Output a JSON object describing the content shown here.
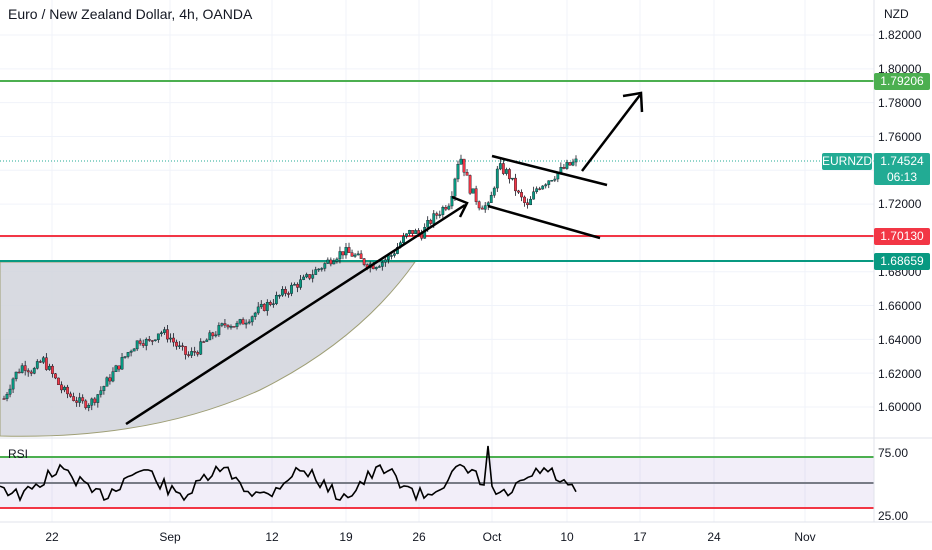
{
  "header": {
    "title": "Euro / New Zealand Dollar, 4h, OANDA"
  },
  "price_axis": {
    "unit": "NZD",
    "ticks": [
      "1.82000",
      "1.80000",
      "1.78000",
      "1.76000",
      "1.72000",
      "1.68000",
      "1.66000",
      "1.64000",
      "1.62000",
      "1.60000"
    ]
  },
  "time_axis": {
    "ticks": [
      "22",
      "Sep",
      "12",
      "19",
      "26",
      "Oct",
      "10",
      "17",
      "24",
      "Nov"
    ]
  },
  "levels": [
    {
      "value": "1.79206",
      "color": "#4caf50"
    },
    {
      "value": "1.70130",
      "color": "#f23645"
    },
    {
      "value": "1.68659",
      "color": "#089981"
    }
  ],
  "current": {
    "symbol": "EURNZD",
    "price": "1.74524",
    "countdown": "06:13",
    "color": "#22ab94"
  },
  "rsi": {
    "label": "RSI",
    "ticks": [
      "75.00",
      "25.00"
    ]
  },
  "colors": {
    "up": "#089981",
    "down": "#f23645",
    "arrow": "#000000",
    "cup_fill": "#d1d4dc"
  },
  "chart_data": {
    "type": "candlestick",
    "title": "Euro / New Zealand Dollar, 4h, OANDA",
    "ylim": [
      1.585,
      1.83
    ],
    "series": [
      {
        "name": "EURNZD",
        "approx_closes": [
          1.605,
          1.618,
          1.625,
          1.621,
          1.628,
          1.619,
          1.61,
          1.606,
          1.602,
          1.603,
          1.61,
          1.618,
          1.626,
          1.634,
          1.64,
          1.638,
          1.645,
          1.642,
          1.635,
          1.63,
          1.634,
          1.64,
          1.645,
          1.65,
          1.648,
          1.652,
          1.656,
          1.66,
          1.664,
          1.668,
          1.672,
          1.675,
          1.68,
          1.684,
          1.689,
          1.692,
          1.69,
          1.686,
          1.684,
          1.686,
          1.69,
          1.698,
          1.704,
          1.702,
          1.71,
          1.716,
          1.722,
          1.75,
          1.73,
          1.72,
          1.718,
          1.742,
          1.738,
          1.726,
          1.718,
          1.73,
          1.734,
          1.738,
          1.742,
          1.745
        ]
      }
    ],
    "levels": [
      1.79206,
      1.7013,
      1.68659
    ],
    "rsi_levels": [
      75,
      25
    ]
  }
}
